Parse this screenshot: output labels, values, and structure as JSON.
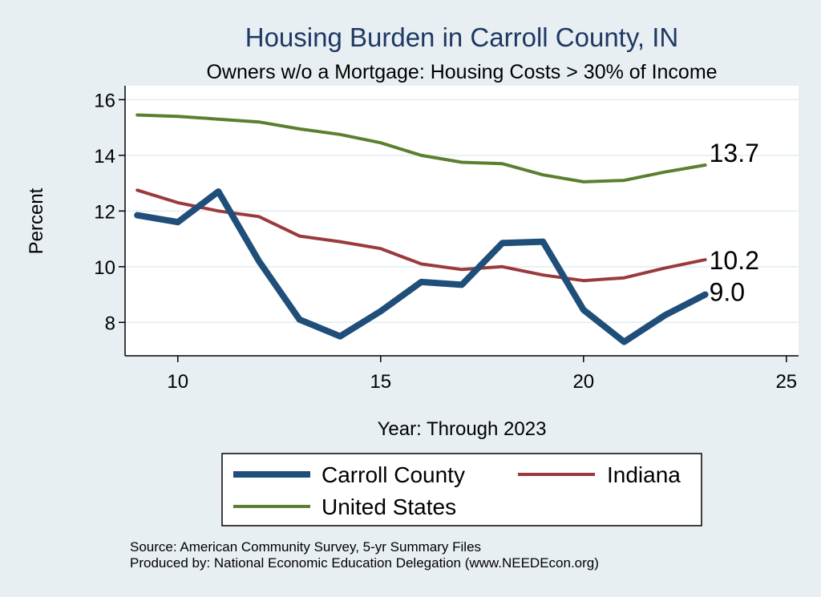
{
  "chart_data": {
    "type": "line",
    "title": "Housing Burden in Carroll County, IN",
    "subtitle": "Owners w/o a Mortgage: Housing Costs > 30% of Income",
    "xlabel": "Year: Through 2023",
    "ylabel": "Percent",
    "xlim": [
      8.7,
      25.3
    ],
    "ylim": [
      6.8,
      16.5
    ],
    "xticks": [
      10,
      15,
      20,
      25
    ],
    "yticks": [
      8,
      10,
      12,
      14,
      16
    ],
    "grid": true,
    "legend_position": "bottom",
    "x": [
      9,
      10,
      11,
      12,
      13,
      14,
      15,
      16,
      17,
      18,
      19,
      20,
      21,
      22,
      23
    ],
    "series": [
      {
        "name": "Carroll County",
        "color": "#1f4e79",
        "values": [
          11.85,
          11.6,
          12.7,
          10.2,
          8.1,
          7.5,
          8.4,
          9.45,
          9.35,
          10.85,
          10.9,
          8.45,
          7.3,
          8.25,
          9.0
        ],
        "end_label": "9.0"
      },
      {
        "name": "Indiana",
        "color": "#9b3a3a",
        "values": [
          12.75,
          12.3,
          12.0,
          11.8,
          11.1,
          10.9,
          10.65,
          10.1,
          9.9,
          10.0,
          9.7,
          9.5,
          9.6,
          9.95,
          10.25
        ],
        "end_label": "10.2"
      },
      {
        "name": "United States",
        "color": "#5b7f2f",
        "values": [
          15.45,
          15.4,
          15.3,
          15.2,
          14.95,
          14.75,
          14.45,
          14.0,
          13.75,
          13.7,
          13.3,
          13.05,
          13.1,
          13.4,
          13.65
        ],
        "end_label": "13.7"
      }
    ],
    "source_lines": [
      "Source: American Community Survey, 5-yr Summary Files",
      "Produced by: National Economic Education Delegation (www.NEEDEcon.org)"
    ]
  }
}
